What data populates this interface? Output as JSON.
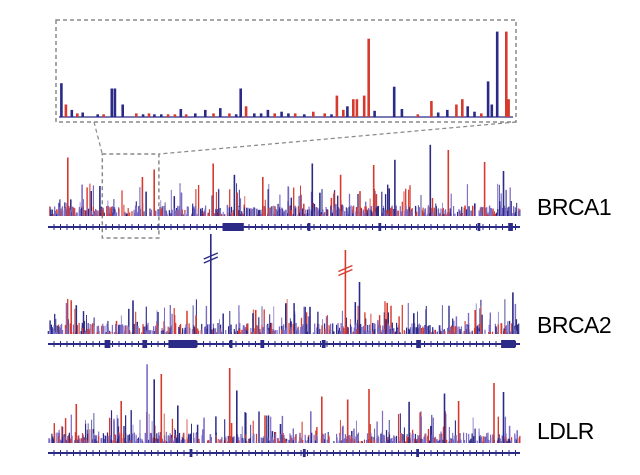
{
  "colors": {
    "blue": "#2b2a86",
    "red": "#d63a2e",
    "mixed": "#7b6bc4",
    "gene": "#2b2a86",
    "zoom_frame": "#8a8a8a"
  },
  "chart_data": {
    "type": "bar",
    "title": "",
    "xlabel": "",
    "ylabel": "",
    "grid": false,
    "legend": "none",
    "zoom_inset": {
      "source_track": "BRCA1",
      "source_range": [
        0.115,
        0.235
      ],
      "bars": [
        {
          "x": 0.005,
          "h": 0.38,
          "c": "blue"
        },
        {
          "x": 0.015,
          "h": 0.14,
          "c": "red"
        },
        {
          "x": 0.028,
          "h": 0.08,
          "c": "blue"
        },
        {
          "x": 0.04,
          "h": 0.04,
          "c": "red"
        },
        {
          "x": 0.052,
          "h": 0.05,
          "c": "blue"
        },
        {
          "x": 0.085,
          "h": 0.03,
          "c": "blue"
        },
        {
          "x": 0.098,
          "h": 0.03,
          "c": "red"
        },
        {
          "x": 0.116,
          "h": 0.32,
          "c": "blue"
        },
        {
          "x": 0.123,
          "h": 0.32,
          "c": "blue"
        },
        {
          "x": 0.14,
          "h": 0.14,
          "c": "blue"
        },
        {
          "x": 0.17,
          "h": 0.04,
          "c": "red"
        },
        {
          "x": 0.185,
          "h": 0.03,
          "c": "blue"
        },
        {
          "x": 0.198,
          "h": 0.04,
          "c": "red"
        },
        {
          "x": 0.21,
          "h": 0.03,
          "c": "blue"
        },
        {
          "x": 0.225,
          "h": 0.03,
          "c": "blue"
        },
        {
          "x": 0.24,
          "h": 0.03,
          "c": "red"
        },
        {
          "x": 0.255,
          "h": 0.03,
          "c": "red"
        },
        {
          "x": 0.268,
          "h": 0.09,
          "c": "blue"
        },
        {
          "x": 0.28,
          "h": 0.03,
          "c": "red"
        },
        {
          "x": 0.3,
          "h": 0.04,
          "c": "blue"
        },
        {
          "x": 0.322,
          "h": 0.08,
          "c": "blue"
        },
        {
          "x": 0.34,
          "h": 0.04,
          "c": "red"
        },
        {
          "x": 0.355,
          "h": 0.1,
          "c": "blue"
        },
        {
          "x": 0.375,
          "h": 0.04,
          "c": "red"
        },
        {
          "x": 0.39,
          "h": 0.03,
          "c": "blue"
        },
        {
          "x": 0.4,
          "h": 0.32,
          "c": "blue"
        },
        {
          "x": 0.412,
          "h": 0.12,
          "c": "red"
        },
        {
          "x": 0.43,
          "h": 0.04,
          "c": "blue"
        },
        {
          "x": 0.445,
          "h": 0.04,
          "c": "blue"
        },
        {
          "x": 0.46,
          "h": 0.08,
          "c": "blue"
        },
        {
          "x": 0.475,
          "h": 0.04,
          "c": "red"
        },
        {
          "x": 0.49,
          "h": 0.06,
          "c": "blue"
        },
        {
          "x": 0.505,
          "h": 0.04,
          "c": "blue"
        },
        {
          "x": 0.52,
          "h": 0.04,
          "c": "red"
        },
        {
          "x": 0.54,
          "h": 0.03,
          "c": "blue"
        },
        {
          "x": 0.56,
          "h": 0.06,
          "c": "red"
        },
        {
          "x": 0.585,
          "h": 0.04,
          "c": "red"
        },
        {
          "x": 0.6,
          "h": 0.03,
          "c": "blue"
        },
        {
          "x": 0.612,
          "h": 0.24,
          "c": "red"
        },
        {
          "x": 0.626,
          "h": 0.08,
          "c": "red"
        },
        {
          "x": 0.635,
          "h": 0.12,
          "c": "blue"
        },
        {
          "x": 0.648,
          "h": 0.2,
          "c": "red"
        },
        {
          "x": 0.656,
          "h": 0.2,
          "c": "red"
        },
        {
          "x": 0.672,
          "h": 0.24,
          "c": "red"
        },
        {
          "x": 0.682,
          "h": 0.88,
          "c": "red"
        },
        {
          "x": 0.695,
          "h": 0.07,
          "c": "blue"
        },
        {
          "x": 0.738,
          "h": 0.34,
          "c": "blue"
        },
        {
          "x": 0.755,
          "h": 0.09,
          "c": "blue"
        },
        {
          "x": 0.79,
          "h": 0.03,
          "c": "red"
        },
        {
          "x": 0.82,
          "h": 0.18,
          "c": "red"
        },
        {
          "x": 0.835,
          "h": 0.05,
          "c": "blue"
        },
        {
          "x": 0.855,
          "h": 0.08,
          "c": "blue"
        },
        {
          "x": 0.875,
          "h": 0.14,
          "c": "red"
        },
        {
          "x": 0.888,
          "h": 0.2,
          "c": "red"
        },
        {
          "x": 0.9,
          "h": 0.12,
          "c": "blue"
        },
        {
          "x": 0.915,
          "h": 0.06,
          "c": "blue"
        },
        {
          "x": 0.93,
          "h": 0.04,
          "c": "red"
        },
        {
          "x": 0.945,
          "h": 0.4,
          "c": "blue"
        },
        {
          "x": 0.953,
          "h": 0.14,
          "c": "blue"
        },
        {
          "x": 0.965,
          "h": 0.96,
          "c": "blue"
        },
        {
          "x": 0.985,
          "h": 0.96,
          "c": "red"
        },
        {
          "x": 0.99,
          "h": 0.2,
          "c": "red"
        }
      ]
    },
    "tracks": [
      {
        "name": "BRCA1",
        "seed": 11,
        "n_bars": 300,
        "peaks": [
          {
            "x": 0.042,
            "h": 0.78,
            "c": "red"
          },
          {
            "x": 0.11,
            "h": 0.4,
            "c": "blue"
          },
          {
            "x": 0.2,
            "h": 0.52,
            "c": "red"
          },
          {
            "x": 0.225,
            "h": 0.62,
            "c": "red"
          },
          {
            "x": 0.35,
            "h": 0.7,
            "c": "red"
          },
          {
            "x": 0.395,
            "h": 0.55,
            "c": "blue"
          },
          {
            "x": 0.455,
            "h": 0.52,
            "c": "red"
          },
          {
            "x": 0.56,
            "h": 0.7,
            "c": "blue"
          },
          {
            "x": 0.62,
            "h": 0.55,
            "c": "red"
          },
          {
            "x": 0.69,
            "h": 0.68,
            "c": "red"
          },
          {
            "x": 0.735,
            "h": 0.75,
            "c": "blue"
          },
          {
            "x": 0.81,
            "h": 0.95,
            "c": "blue"
          },
          {
            "x": 0.848,
            "h": 0.88,
            "c": "red"
          },
          {
            "x": 0.925,
            "h": 0.72,
            "c": "red"
          },
          {
            "x": 0.965,
            "h": 0.6,
            "c": "blue"
          }
        ],
        "exons": [
          {
            "x": 0.37,
            "w": 0.045
          },
          {
            "x": 0.55,
            "w": 0.006
          },
          {
            "x": 0.7,
            "w": 0.006
          },
          {
            "x": 0.91,
            "w": 0.006
          },
          {
            "x": 0.975,
            "w": 0.01
          }
        ]
      },
      {
        "name": "BRCA2",
        "seed": 23,
        "n_bars": 280,
        "peaks": [
          {
            "x": 0.345,
            "h": 1.25,
            "c": "blue",
            "broken": true
          },
          {
            "x": 0.63,
            "h": 1.05,
            "c": "red",
            "broken": true
          },
          {
            "x": 0.66,
            "h": 0.65,
            "c": "blue"
          },
          {
            "x": 0.06,
            "h": 0.36,
            "c": "blue"
          },
          {
            "x": 0.18,
            "h": 0.42,
            "c": "blue"
          },
          {
            "x": 0.44,
            "h": 0.3,
            "c": "red"
          },
          {
            "x": 0.555,
            "h": 0.34,
            "c": "blue"
          },
          {
            "x": 0.775,
            "h": 0.26,
            "c": "blue"
          },
          {
            "x": 0.905,
            "h": 0.3,
            "c": "red"
          },
          {
            "x": 0.985,
            "h": 0.52,
            "c": "blue"
          }
        ],
        "exons": [
          {
            "x": 0.12,
            "w": 0.012
          },
          {
            "x": 0.2,
            "w": 0.01
          },
          {
            "x": 0.255,
            "w": 0.06
          },
          {
            "x": 0.385,
            "w": 0.006
          },
          {
            "x": 0.45,
            "w": 0.008
          },
          {
            "x": 0.58,
            "w": 0.008
          },
          {
            "x": 0.78,
            "w": 0.01
          },
          {
            "x": 0.96,
            "w": 0.03
          }
        ]
      },
      {
        "name": "LDLR",
        "seed": 37,
        "n_bars": 280,
        "peaks": [
          {
            "x": 0.06,
            "h": 0.52,
            "c": "red"
          },
          {
            "x": 0.155,
            "h": 0.56,
            "c": "red"
          },
          {
            "x": 0.21,
            "h": 1.05,
            "c": "mixed"
          },
          {
            "x": 0.225,
            "h": 0.85,
            "c": "blue"
          },
          {
            "x": 0.24,
            "h": 0.92,
            "c": "red"
          },
          {
            "x": 0.275,
            "h": 0.5,
            "c": "blue"
          },
          {
            "x": 0.385,
            "h": 1.0,
            "c": "red"
          },
          {
            "x": 0.4,
            "h": 0.7,
            "c": "blue"
          },
          {
            "x": 0.58,
            "h": 0.62,
            "c": "red"
          },
          {
            "x": 0.635,
            "h": 0.58,
            "c": "red"
          },
          {
            "x": 0.68,
            "h": 0.72,
            "c": "red"
          },
          {
            "x": 0.765,
            "h": 0.55,
            "c": "blue"
          },
          {
            "x": 0.84,
            "h": 0.66,
            "c": "blue"
          },
          {
            "x": 0.87,
            "h": 0.56,
            "c": "red"
          },
          {
            "x": 0.945,
            "h": 0.8,
            "c": "red"
          },
          {
            "x": 0.965,
            "h": 0.68,
            "c": "blue"
          }
        ],
        "exons": [
          {
            "x": 0.3,
            "w": 0.006
          },
          {
            "x": 0.54,
            "w": 0.006
          },
          {
            "x": 0.78,
            "w": 0.006
          }
        ]
      }
    ]
  }
}
